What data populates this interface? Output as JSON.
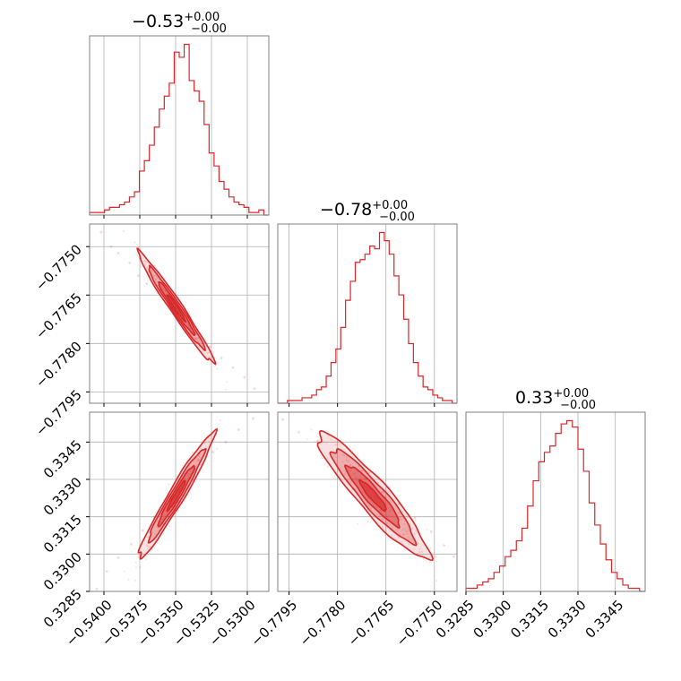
{
  "chart_data": {
    "type": "corner",
    "color": "#d62728",
    "parameters": [
      {
        "title_value": "−0.53",
        "title_plus": "+0.00",
        "title_minus": "−0.00",
        "range": [
          -0.541,
          -0.5285
        ],
        "ticks": [
          -0.54,
          -0.5375,
          -0.535,
          -0.5325,
          -0.53
        ],
        "tick_labels": [
          "−0.5400",
          "−0.5375",
          "−0.5350",
          "−0.5325",
          "−0.5300"
        ],
        "hist_edges": [
          -0.541,
          -0.5285
        ],
        "hist_counts": [
          1,
          1,
          1,
          2,
          3,
          3,
          4,
          5,
          7,
          9,
          17,
          21,
          27,
          34,
          41,
          46,
          51,
          63,
          61,
          66,
          52,
          48,
          44,
          35,
          24,
          19,
          13,
          10,
          7,
          5,
          4,
          3,
          1,
          1,
          2,
          0
        ]
      },
      {
        "title_value": "−0.78",
        "title_plus": "+0.00",
        "title_minus": "−0.00",
        "range": [
          -0.77985,
          -0.7743
        ],
        "ticks": [
          -0.7795,
          -0.778,
          -0.7765,
          -0.775
        ],
        "tick_labels": [
          "−0.7795",
          "−0.7780",
          "−0.7765",
          "−0.7750"
        ],
        "hist_edges": [
          -0.77985,
          -0.7743
        ],
        "hist_counts": [
          0,
          0,
          1,
          1,
          1,
          2,
          2,
          3,
          5,
          6,
          10,
          15,
          20,
          28,
          38,
          45,
          52,
          53,
          55,
          58,
          57,
          63,
          60,
          55,
          47,
          40,
          31,
          22,
          15,
          10,
          6,
          5,
          3,
          2,
          1,
          1,
          0
        ]
      },
      {
        "title_value": "0.33",
        "title_plus": "+0.00",
        "title_minus": "−0.00",
        "range": [
          0.3285,
          0.3357
        ],
        "ticks": [
          0.3285,
          0.33,
          0.3315,
          0.333,
          0.3345
        ],
        "tick_labels": [
          "0.3285",
          "0.3300",
          "0.3315",
          "0.3330",
          "0.3345"
        ],
        "hist_edges": [
          0.3285,
          0.3357
        ],
        "hist_counts": [
          1,
          1,
          2,
          3,
          4,
          6,
          8,
          11,
          13,
          16,
          20,
          27,
          35,
          41,
          44,
          46,
          50,
          53,
          54,
          52,
          45,
          38,
          28,
          21,
          15,
          10,
          6,
          4,
          2,
          1,
          1,
          0
        ]
      }
    ],
    "pairs": [
      {
        "row": 1,
        "col": 0,
        "center": [
          -0.53495,
          -0.7769
        ],
        "sigma": [
          0.00115,
          0.00075
        ],
        "rho": -0.98,
        "points": [
          [
            -0.5408,
            -0.7742
          ],
          [
            -0.5402,
            -0.77455
          ],
          [
            -0.5395,
            -0.775
          ],
          [
            -0.539,
            -0.7752
          ],
          [
            -0.5382,
            -0.7755
          ],
          [
            -0.5376,
            -0.7759
          ],
          [
            -0.537,
            -0.77615
          ],
          [
            -0.5362,
            -0.7764
          ],
          [
            -0.5355,
            -0.7767
          ],
          [
            -0.5348,
            -0.77705
          ],
          [
            -0.534,
            -0.77745
          ],
          [
            -0.5333,
            -0.7778
          ],
          [
            -0.5326,
            -0.7781
          ],
          [
            -0.5318,
            -0.77845
          ],
          [
            -0.531,
            -0.77875
          ],
          [
            -0.5302,
            -0.77905
          ],
          [
            -0.5295,
            -0.7794
          ]
        ]
      },
      {
        "row": 2,
        "col": 0,
        "center": [
          -0.53495,
          0.33235
        ],
        "sigma": [
          0.00115,
          0.0011
        ],
        "rho": 0.97,
        "points": [
          [
            -0.5405,
            0.3286
          ],
          [
            -0.5398,
            0.3293
          ],
          [
            -0.539,
            0.32985
          ],
          [
            -0.5381,
            0.3304
          ],
          [
            -0.5373,
            0.33095
          ],
          [
            -0.5365,
            0.3315
          ],
          [
            -0.5357,
            0.332
          ],
          [
            -0.5349,
            0.33255
          ],
          [
            -0.534,
            0.33305
          ],
          [
            -0.5332,
            0.3336
          ],
          [
            -0.5324,
            0.3341
          ],
          [
            -0.5315,
            0.3345
          ],
          [
            -0.5306,
            0.335
          ],
          [
            -0.5296,
            0.33545
          ]
        ]
      },
      {
        "row": 2,
        "col": 1,
        "center": [
          -0.7769,
          0.33235
        ],
        "sigma": [
          0.00075,
          0.0011
        ],
        "rho": -0.93,
        "points": [
          [
            -0.7797,
            0.3354
          ],
          [
            -0.7792,
            0.3349
          ],
          [
            -0.7786,
            0.33455
          ],
          [
            -0.7781,
            0.33405
          ],
          [
            -0.7776,
            0.33355
          ],
          [
            -0.7771,
            0.33305
          ],
          [
            -0.7766,
            0.3325
          ],
          [
            -0.7761,
            0.332
          ],
          [
            -0.7756,
            0.33145
          ],
          [
            -0.7751,
            0.3309
          ],
          [
            -0.7747,
            0.33035
          ],
          [
            -0.7744,
            0.3299
          ]
        ]
      }
    ],
    "grid": true
  }
}
